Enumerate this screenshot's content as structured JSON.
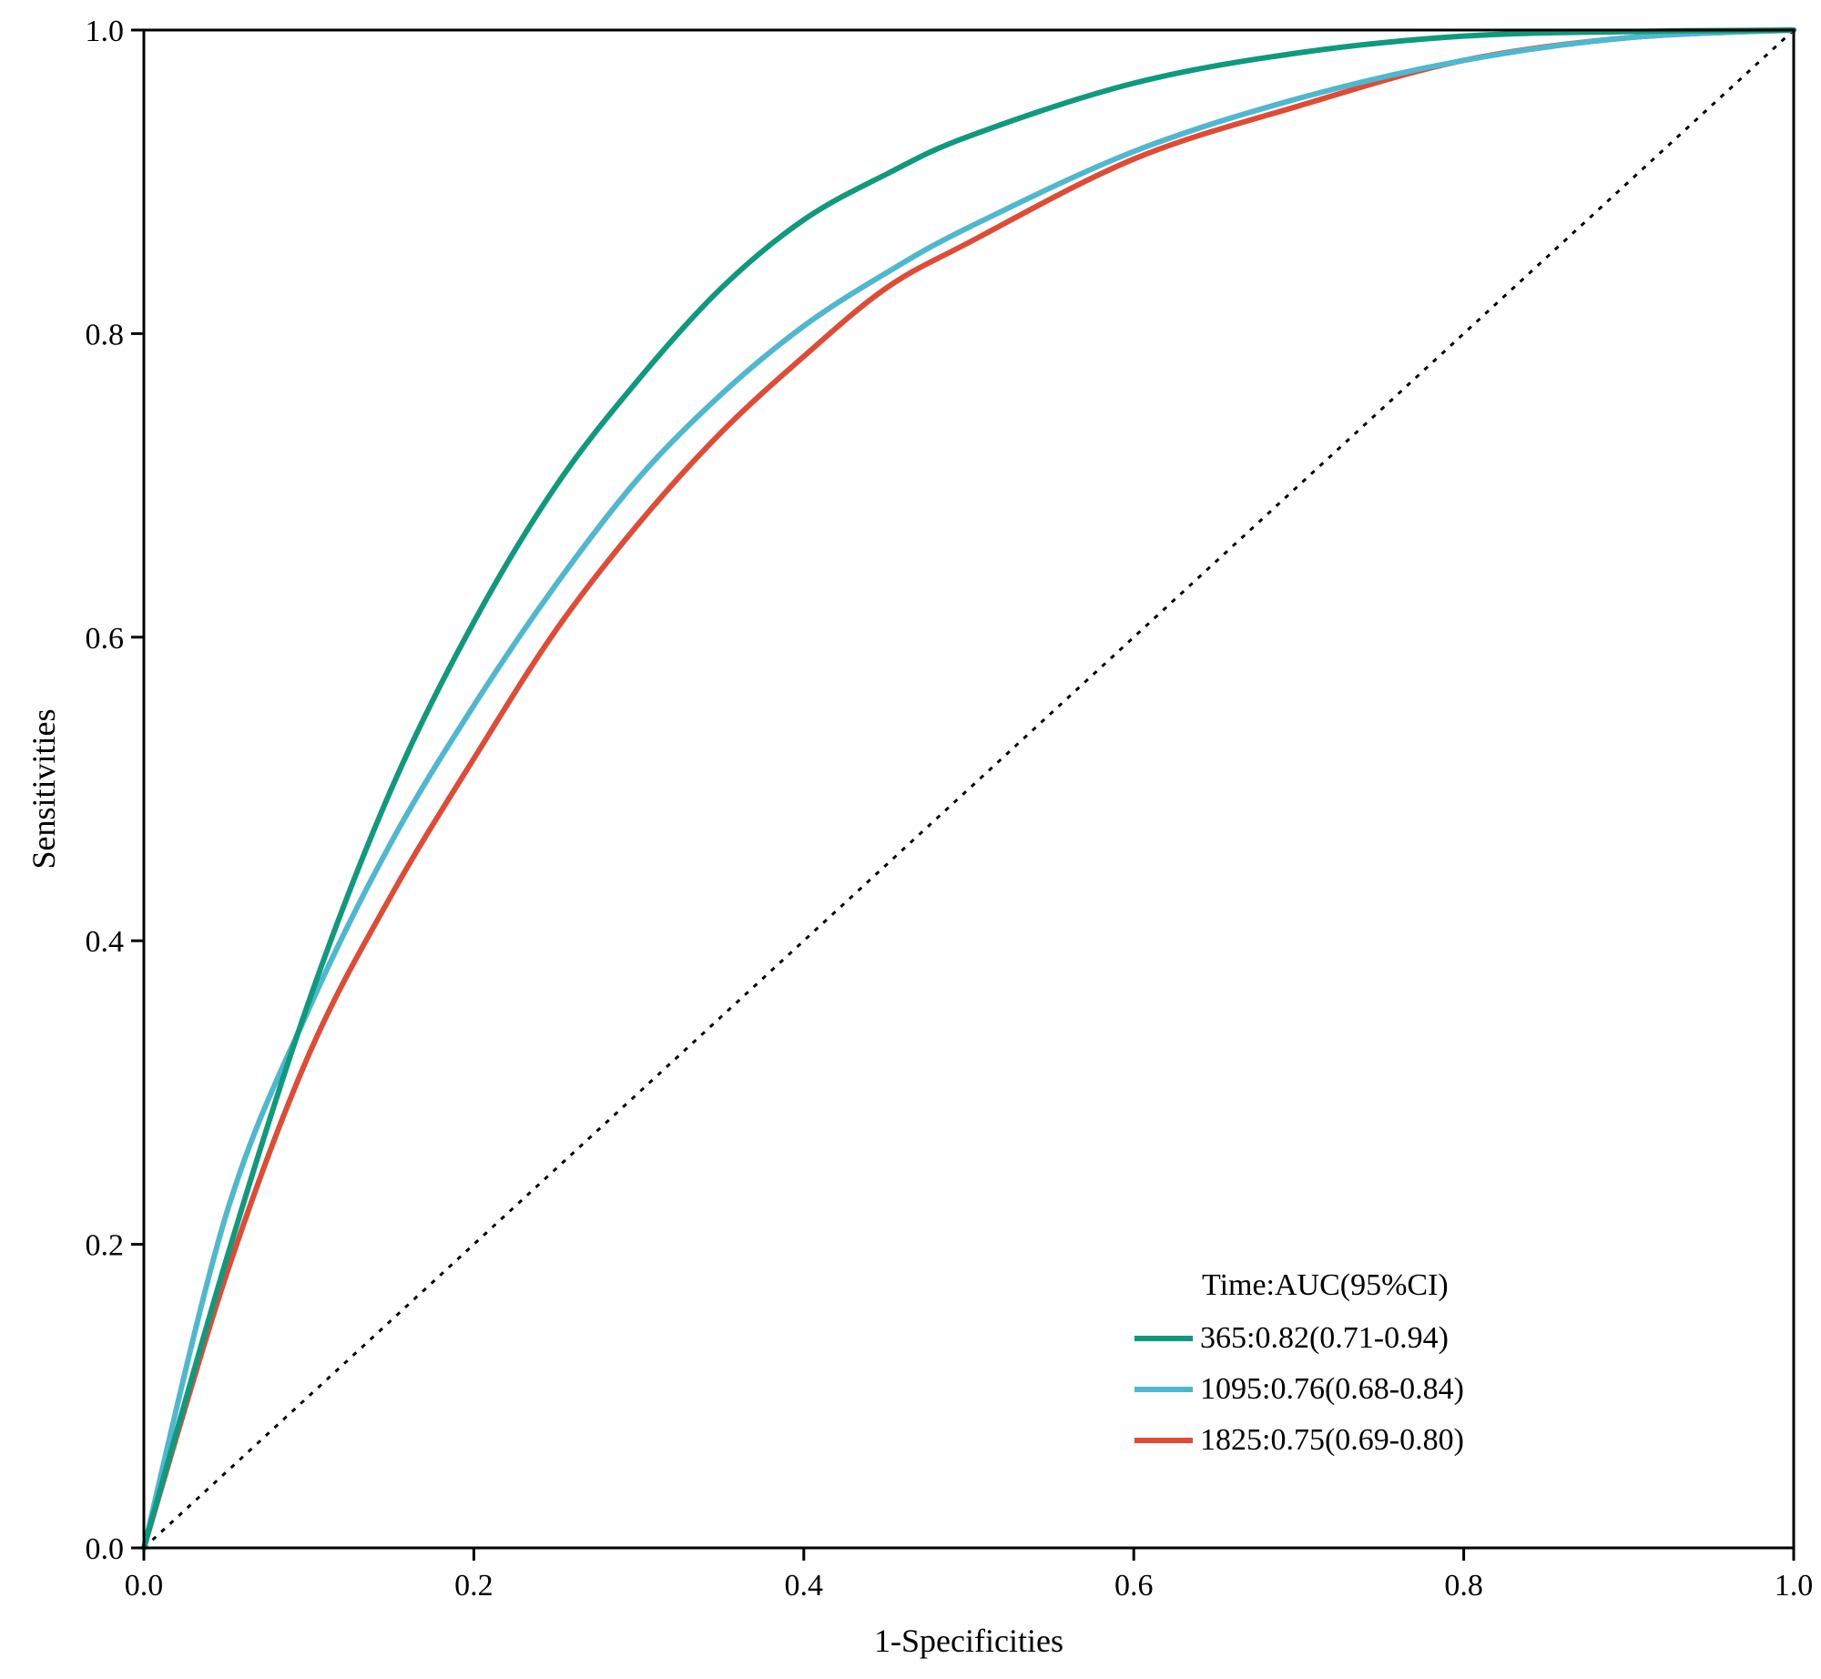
{
  "chart_data": {
    "type": "line",
    "title": "",
    "xlabel": "1-Specificities",
    "ylabel": "Sensitivities",
    "xlim": [
      0,
      1
    ],
    "ylim": [
      0,
      1
    ],
    "xticks": [
      "0.0",
      "0.2",
      "0.4",
      "0.6",
      "0.8",
      "1.0"
    ],
    "yticks": [
      "0.0",
      "0.2",
      "0.4",
      "0.6",
      "0.8",
      "1.0"
    ],
    "grid": false,
    "legend": {
      "title": "Time:AUC(95%CI)",
      "placement": "bottom-right"
    },
    "reference_line": {
      "x": [
        0,
        1
      ],
      "y": [
        0,
        1
      ],
      "style": "dotted",
      "color": "#000000"
    },
    "series": [
      {
        "name": "365:0.82(0.71-0.94)",
        "color": "#0f9a7e",
        "x": [
          0,
          0.05,
          0.1,
          0.15,
          0.2,
          0.25,
          0.3,
          0.35,
          0.4,
          0.45,
          0.5,
          0.6,
          0.7,
          0.8,
          0.9,
          1.0
        ],
        "y": [
          0,
          0.19,
          0.36,
          0.5,
          0.61,
          0.7,
          0.77,
          0.83,
          0.875,
          0.905,
          0.93,
          0.965,
          0.985,
          0.996,
          0.999,
          1.0
        ]
      },
      {
        "name": "1095:0.76(0.68-0.84)",
        "color": "#4db8cf",
        "x": [
          0,
          0.05,
          0.1,
          0.15,
          0.2,
          0.25,
          0.3,
          0.35,
          0.4,
          0.45,
          0.5,
          0.6,
          0.7,
          0.8,
          0.9,
          1.0
        ],
        "y": [
          0,
          0.22,
          0.355,
          0.465,
          0.555,
          0.635,
          0.705,
          0.76,
          0.805,
          0.84,
          0.87,
          0.92,
          0.955,
          0.98,
          0.995,
          1.0
        ]
      },
      {
        "name": "1825:0.75(0.69-0.80)",
        "color": "#e04b35",
        "x": [
          0,
          0.05,
          0.1,
          0.15,
          0.2,
          0.25,
          0.3,
          0.35,
          0.4,
          0.45,
          0.5,
          0.6,
          0.7,
          0.8,
          0.9,
          1.0
        ],
        "y": [
          0,
          0.18,
          0.325,
          0.43,
          0.52,
          0.605,
          0.675,
          0.735,
          0.785,
          0.83,
          0.86,
          0.915,
          0.95,
          0.98,
          0.995,
          1.0
        ]
      }
    ]
  }
}
